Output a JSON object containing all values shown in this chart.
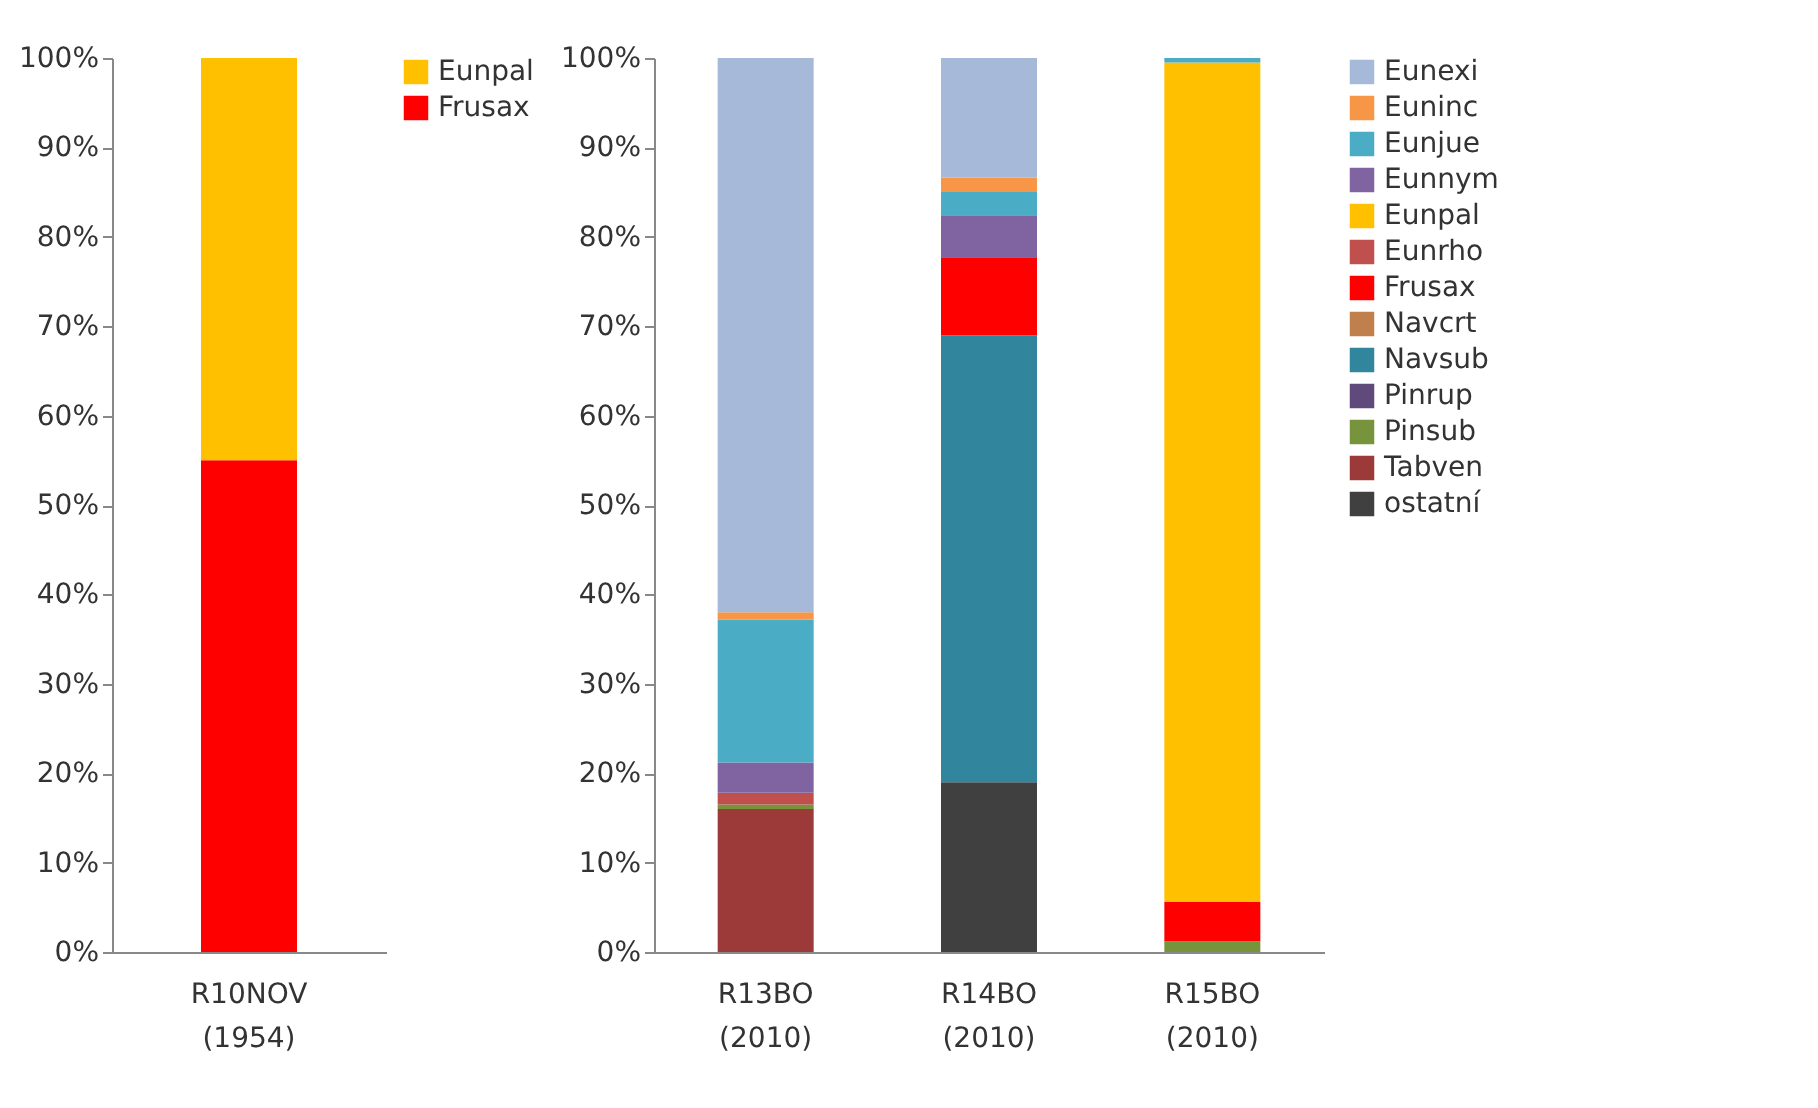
{
  "chart_data": [
    {
      "type": "bar",
      "stacked": true,
      "legend": "right",
      "grid": false,
      "categories": [
        "R10NOV (1954)"
      ],
      "ylim": [
        0,
        100
      ],
      "yticks": [
        {
          "value": 0,
          "label": "0%"
        },
        {
          "value": 10,
          "label": "10%"
        },
        {
          "value": 20,
          "label": "20%"
        },
        {
          "value": 30,
          "label": "30%"
        },
        {
          "value": 40,
          "label": "40%"
        },
        {
          "value": 50,
          "label": "50%"
        },
        {
          "value": 60,
          "label": "60%"
        },
        {
          "value": 70,
          "label": "70%"
        },
        {
          "value": 80,
          "label": "80%"
        },
        {
          "value": 90,
          "label": "90%"
        },
        {
          "value": 100,
          "label": "100%"
        }
      ],
      "series": [
        {
          "name": "Frusax",
          "color": "#ff0000",
          "values": [
            55
          ]
        },
        {
          "name": "Eunpal",
          "color": "#ffc000",
          "values": [
            45
          ]
        }
      ]
    },
    {
      "type": "bar",
      "stacked": true,
      "legend": "right",
      "grid": false,
      "categories": [
        "R13BO (2010)",
        "R14BO (2010)",
        "R15BO (2010)"
      ],
      "ylim": [
        0,
        100
      ],
      "yticks": [
        {
          "value": 0,
          "label": "0%"
        },
        {
          "value": 10,
          "label": "10%"
        },
        {
          "value": 20,
          "label": "20%"
        },
        {
          "value": 30,
          "label": "30%"
        },
        {
          "value": 40,
          "label": "40%"
        },
        {
          "value": 50,
          "label": "50%"
        },
        {
          "value": 60,
          "label": "60%"
        },
        {
          "value": 70,
          "label": "70%"
        },
        {
          "value": 80,
          "label": "80%"
        },
        {
          "value": 90,
          "label": "90%"
        },
        {
          "value": 100,
          "label": "100%"
        }
      ],
      "series": [
        {
          "name": "ostatní",
          "color": "#404040",
          "values": [
            0,
            19,
            0
          ]
        },
        {
          "name": "Tabven",
          "color": "#9b3a38",
          "values": [
            16,
            0,
            0
          ]
        },
        {
          "name": "Pinsub",
          "color": "#77933c",
          "values": [
            0.5,
            0,
            1.2
          ]
        },
        {
          "name": "Pinrup",
          "color": "#604a7b",
          "values": [
            0,
            0,
            0
          ]
        },
        {
          "name": "Navsub",
          "color": "#31859c",
          "values": [
            0,
            50,
            0
          ]
        },
        {
          "name": "Navcrt",
          "color": "#c0804d",
          "values": [
            0,
            0,
            0
          ]
        },
        {
          "name": "Frusax",
          "color": "#ff0000",
          "values": [
            0,
            8.7,
            4.4
          ]
        },
        {
          "name": "Eunrho",
          "color": "#c0504d",
          "values": [
            1.3,
            0,
            0
          ]
        },
        {
          "name": "Eunpal",
          "color": "#ffc000",
          "values": [
            0,
            0,
            93.9
          ]
        },
        {
          "name": "Eunnym",
          "color": "#8064a2",
          "values": [
            3.4,
            4.7,
            0
          ]
        },
        {
          "name": "Eunjue",
          "color": "#4bacc6",
          "values": [
            16,
            2.6,
            0.5
          ]
        },
        {
          "name": "Euninc",
          "color": "#f79646",
          "values": [
            0.8,
            1.6,
            0
          ]
        },
        {
          "name": "Eunexi",
          "color": "#a7b9d8",
          "values": [
            62,
            13.4,
            0
          ]
        }
      ]
    }
  ]
}
